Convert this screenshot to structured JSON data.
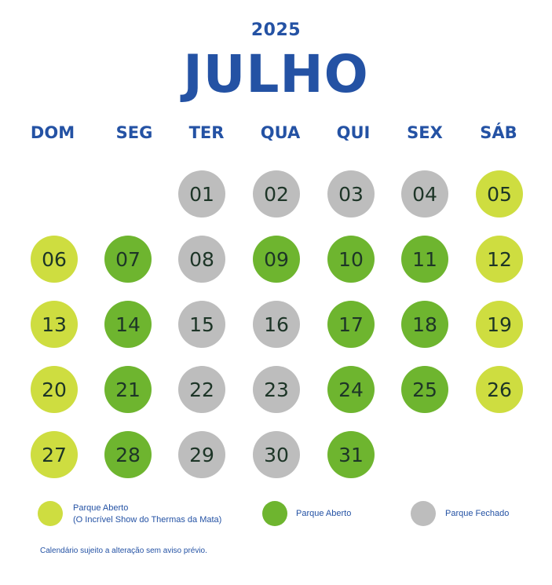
{
  "calendar": {
    "year": "2025",
    "month": "JULHO",
    "weekdays": [
      "DOM",
      "SEG",
      "TER",
      "QUA",
      "QUI",
      "SEX",
      "SÁB"
    ],
    "days": [
      {
        "label": "01",
        "status": "closed"
      },
      {
        "label": "02",
        "status": "closed"
      },
      {
        "label": "03",
        "status": "closed"
      },
      {
        "label": "04",
        "status": "closed"
      },
      {
        "label": "05",
        "status": "special"
      },
      {
        "label": "06",
        "status": "special"
      },
      {
        "label": "07",
        "status": "open"
      },
      {
        "label": "08",
        "status": "closed"
      },
      {
        "label": "09",
        "status": "open"
      },
      {
        "label": "10",
        "status": "open"
      },
      {
        "label": "11",
        "status": "open"
      },
      {
        "label": "12",
        "status": "special"
      },
      {
        "label": "13",
        "status": "special"
      },
      {
        "label": "14",
        "status": "open"
      },
      {
        "label": "15",
        "status": "closed"
      },
      {
        "label": "16",
        "status": "closed"
      },
      {
        "label": "17",
        "status": "open"
      },
      {
        "label": "18",
        "status": "open"
      },
      {
        "label": "19",
        "status": "special"
      },
      {
        "label": "20",
        "status": "special"
      },
      {
        "label": "21",
        "status": "open"
      },
      {
        "label": "22",
        "status": "closed"
      },
      {
        "label": "23",
        "status": "closed"
      },
      {
        "label": "24",
        "status": "open"
      },
      {
        "label": "25",
        "status": "open"
      },
      {
        "label": "26",
        "status": "special"
      },
      {
        "label": "27",
        "status": "special"
      },
      {
        "label": "28",
        "status": "open"
      },
      {
        "label": "29",
        "status": "closed"
      },
      {
        "label": "30",
        "status": "closed"
      },
      {
        "label": "31",
        "status": "open"
      }
    ]
  },
  "legend": {
    "special_line1": "Parque Aberto",
    "special_line2": "(O Incrível Show do Thermas da Mata)",
    "open": "Parque Aberto",
    "closed": "Parque Fechado"
  },
  "colors": {
    "title": "#2452a4",
    "special": "#cedd40",
    "open": "#6eb52f",
    "closed": "#bdbdbd",
    "day_text": "#1d3527"
  },
  "disclaimer": "Calendário sujeito a alteração sem aviso prévio."
}
